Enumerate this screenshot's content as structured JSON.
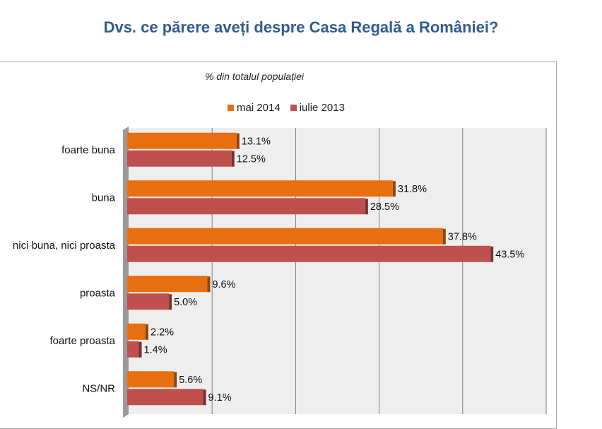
{
  "header": {
    "title": "Dvs. ce părere aveți despre Casa Regală a României?"
  },
  "chart_data": {
    "type": "bar",
    "orientation": "horizontal",
    "title": "",
    "subtitle": "% din totalul populației",
    "categories": [
      "foarte buna",
      "buna",
      "nici buna, nici proasta",
      "proasta",
      "foarte proasta",
      "NS/NR"
    ],
    "series": [
      {
        "name": "mai 2014",
        "color": "#e86f0f",
        "values": [
          13.1,
          31.8,
          37.8,
          9.6,
          2.2,
          5.6
        ],
        "labels": [
          "13.1%",
          "31.8%",
          "37.8%",
          "9.6%",
          "2.2%",
          "5.6%"
        ]
      },
      {
        "name": "iulie 2013",
        "color": "#c0504d",
        "values": [
          12.5,
          28.5,
          43.5,
          5.0,
          1.4,
          9.1
        ],
        "labels": [
          "12.5%",
          "28.5%",
          "43.5%",
          "5.0%",
          "1.4%",
          "9.1%"
        ]
      }
    ],
    "xlim": [
      0,
      50
    ],
    "grid": true,
    "legend_position": "top"
  }
}
